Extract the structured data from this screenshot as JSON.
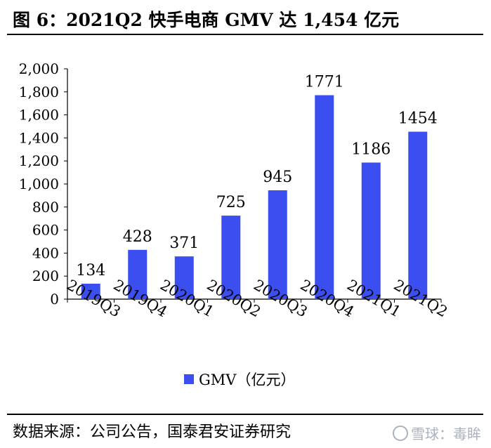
{
  "title": "图 6：2021Q2 快手电商 GMV 达 1,454 亿元",
  "source": "数据来源：公司公告，国泰君安证券研究",
  "watermark": "雪球：毒眸",
  "colors": {
    "bar": "#3b4ef0",
    "axis": "#000000"
  },
  "chart_data": {
    "type": "bar",
    "categories": [
      "2019Q3",
      "2019Q4",
      "2020Q1",
      "2020Q2",
      "2020Q3",
      "2020Q4",
      "2021Q1",
      "2021Q2"
    ],
    "series": [
      {
        "name": "GMV（亿元）",
        "values": [
          134,
          428,
          371,
          725,
          945,
          1771,
          1186,
          1454
        ]
      }
    ],
    "y_ticks": [
      "0",
      "200",
      "400",
      "600",
      "800",
      "1,000",
      "1,200",
      "1,400",
      "1,600",
      "1,800",
      "2,000"
    ],
    "ylim": [
      0,
      2000
    ],
    "grid": false,
    "legend": "bottom"
  }
}
